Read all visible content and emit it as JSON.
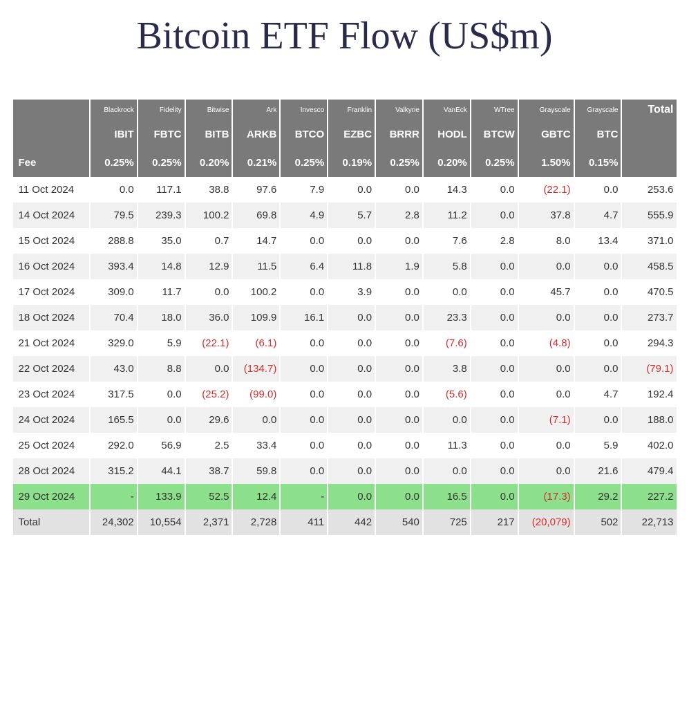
{
  "title": "Bitcoin ETF Flow (US$m)",
  "colors": {
    "header_bg": "#7a7a7a",
    "header_text": "#ffffff",
    "row_alt_bg": "#f0f0f0",
    "highlight_bg": "#8ce08c",
    "negative_text": "#d82c2c",
    "title_color": "#2a2a4a"
  },
  "columns": [
    {
      "issuer": "",
      "ticker": "",
      "fee": "Fee"
    },
    {
      "issuer": "Blackrock",
      "ticker": "IBIT",
      "fee": "0.25%"
    },
    {
      "issuer": "Fidelity",
      "ticker": "FBTC",
      "fee": "0.25%"
    },
    {
      "issuer": "Bitwise",
      "ticker": "BITB",
      "fee": "0.20%"
    },
    {
      "issuer": "Ark",
      "ticker": "ARKB",
      "fee": "0.21%"
    },
    {
      "issuer": "Invesco",
      "ticker": "BTCO",
      "fee": "0.25%"
    },
    {
      "issuer": "Franklin",
      "ticker": "EZBC",
      "fee": "0.19%"
    },
    {
      "issuer": "Valkyrie",
      "ticker": "BRRR",
      "fee": "0.25%"
    },
    {
      "issuer": "VanEck",
      "ticker": "HODL",
      "fee": "0.20%"
    },
    {
      "issuer": "WTree",
      "ticker": "BTCW",
      "fee": "0.25%"
    },
    {
      "issuer": "Grayscale",
      "ticker": "GBTC",
      "fee": "1.50%"
    },
    {
      "issuer": "Grayscale",
      "ticker": "BTC",
      "fee": "0.15%"
    },
    {
      "issuer": "",
      "ticker": "Total",
      "fee": ""
    }
  ],
  "rows": [
    {
      "date": "11 Oct 2024",
      "v": [
        "0.0",
        "117.1",
        "38.8",
        "97.6",
        "7.9",
        "0.0",
        "0.0",
        "14.3",
        "0.0",
        "(22.1)",
        "0.0",
        "253.6"
      ]
    },
    {
      "date": "14 Oct 2024",
      "v": [
        "79.5",
        "239.3",
        "100.2",
        "69.8",
        "4.9",
        "5.7",
        "2.8",
        "11.2",
        "0.0",
        "37.8",
        "4.7",
        "555.9"
      ]
    },
    {
      "date": "15 Oct 2024",
      "v": [
        "288.8",
        "35.0",
        "0.7",
        "14.7",
        "0.0",
        "0.0",
        "0.0",
        "7.6",
        "2.8",
        "8.0",
        "13.4",
        "371.0"
      ]
    },
    {
      "date": "16 Oct 2024",
      "v": [
        "393.4",
        "14.8",
        "12.9",
        "11.5",
        "6.4",
        "11.8",
        "1.9",
        "5.8",
        "0.0",
        "0.0",
        "0.0",
        "458.5"
      ]
    },
    {
      "date": "17 Oct 2024",
      "v": [
        "309.0",
        "11.7",
        "0.0",
        "100.2",
        "0.0",
        "3.9",
        "0.0",
        "0.0",
        "0.0",
        "45.7",
        "0.0",
        "470.5"
      ]
    },
    {
      "date": "18 Oct 2024",
      "v": [
        "70.4",
        "18.0",
        "36.0",
        "109.9",
        "16.1",
        "0.0",
        "0.0",
        "23.3",
        "0.0",
        "0.0",
        "0.0",
        "273.7"
      ]
    },
    {
      "date": "21 Oct 2024",
      "v": [
        "329.0",
        "5.9",
        "(22.1)",
        "(6.1)",
        "0.0",
        "0.0",
        "0.0",
        "(7.6)",
        "0.0",
        "(4.8)",
        "0.0",
        "294.3"
      ]
    },
    {
      "date": "22 Oct 2024",
      "v": [
        "43.0",
        "8.8",
        "0.0",
        "(134.7)",
        "0.0",
        "0.0",
        "0.0",
        "3.8",
        "0.0",
        "0.0",
        "0.0",
        "(79.1)"
      ]
    },
    {
      "date": "23 Oct 2024",
      "v": [
        "317.5",
        "0.0",
        "(25.2)",
        "(99.0)",
        "0.0",
        "0.0",
        "0.0",
        "(5.6)",
        "0.0",
        "0.0",
        "4.7",
        "192.4"
      ]
    },
    {
      "date": "24 Oct 2024",
      "v": [
        "165.5",
        "0.0",
        "29.6",
        "0.0",
        "0.0",
        "0.0",
        "0.0",
        "0.0",
        "0.0",
        "(7.1)",
        "0.0",
        "188.0"
      ]
    },
    {
      "date": "25 Oct 2024",
      "v": [
        "292.0",
        "56.9",
        "2.5",
        "33.4",
        "0.0",
        "0.0",
        "0.0",
        "11.3",
        "0.0",
        "0.0",
        "5.9",
        "402.0"
      ]
    },
    {
      "date": "28 Oct 2024",
      "v": [
        "315.2",
        "44.1",
        "38.7",
        "59.8",
        "0.0",
        "0.0",
        "0.0",
        "0.0",
        "0.0",
        "0.0",
        "21.6",
        "479.4"
      ]
    },
    {
      "date": "29 Oct 2024",
      "v": [
        "-",
        "133.9",
        "52.5",
        "12.4",
        "-",
        "0.0",
        "0.0",
        "16.5",
        "0.0",
        "(17.3)",
        "29.2",
        "227.2"
      ],
      "highlight": true
    }
  ],
  "total_row": {
    "label": "Total",
    "v": [
      "24,302",
      "10,554",
      "2,371",
      "2,728",
      "411",
      "442",
      "540",
      "725",
      "217",
      "(20,079)",
      "502",
      "22,713"
    ]
  }
}
